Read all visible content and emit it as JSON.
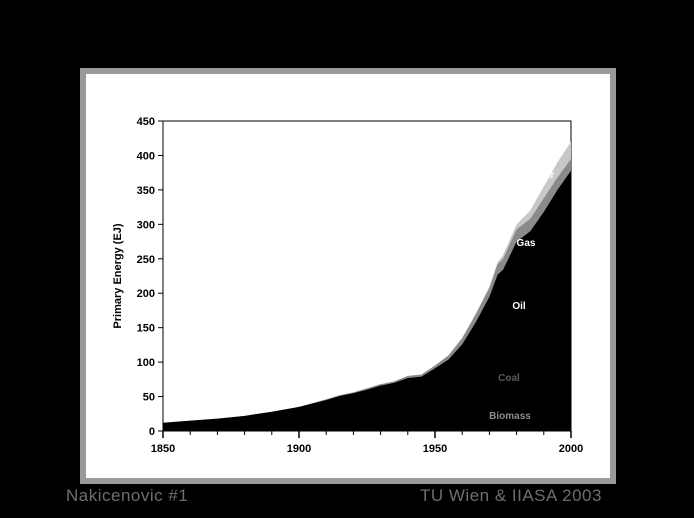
{
  "footer": {
    "left_text": "Nakicenovic #1",
    "right_text": "TU Wien & IIASA 2003"
  },
  "colors": {
    "background": "#000000",
    "panel": "#ffffff",
    "stack_fill": "#000000",
    "gas_band": "#8a8a8a",
    "nuclear_band": "#c8c8c8"
  },
  "chart_data": {
    "type": "area",
    "ylabel": "Primary Energy (EJ)",
    "xlim": [
      1850,
      2000
    ],
    "ylim": [
      0,
      450
    ],
    "x_ticks": [
      1850,
      1900,
      1950,
      2000
    ],
    "y_ticks": [
      0,
      50,
      100,
      150,
      200,
      250,
      300,
      350,
      400,
      450
    ],
    "series_labels": [
      "Biomass",
      "Coal",
      "Oil",
      "Gas",
      "Nuclear"
    ],
    "x": [
      1850,
      1860,
      1870,
      1880,
      1890,
      1900,
      1910,
      1915,
      1920,
      1925,
      1930,
      1935,
      1940,
      1945,
      1950,
      1955,
      1960,
      1965,
      1970,
      1973,
      1975,
      1980,
      1985,
      1990,
      1995,
      2000
    ],
    "total": [
      12,
      15,
      18,
      22,
      28,
      35,
      46,
      52,
      56,
      62,
      68,
      72,
      80,
      82,
      95,
      110,
      135,
      170,
      210,
      245,
      255,
      300,
      320,
      355,
      390,
      420
    ],
    "nuclear_start": [
      12,
      15,
      18,
      22,
      28,
      35,
      46,
      52,
      56,
      62,
      68,
      72,
      80,
      82,
      95,
      110,
      135,
      170,
      208,
      242,
      250,
      293,
      308,
      338,
      368,
      395
    ],
    "gas_start": [
      12,
      15,
      18,
      22,
      28,
      35,
      45,
      51,
      55,
      60,
      66,
      70,
      77,
      79,
      91,
      104,
      126,
      158,
      195,
      227,
      234,
      275,
      290,
      318,
      350,
      378
    ]
  }
}
